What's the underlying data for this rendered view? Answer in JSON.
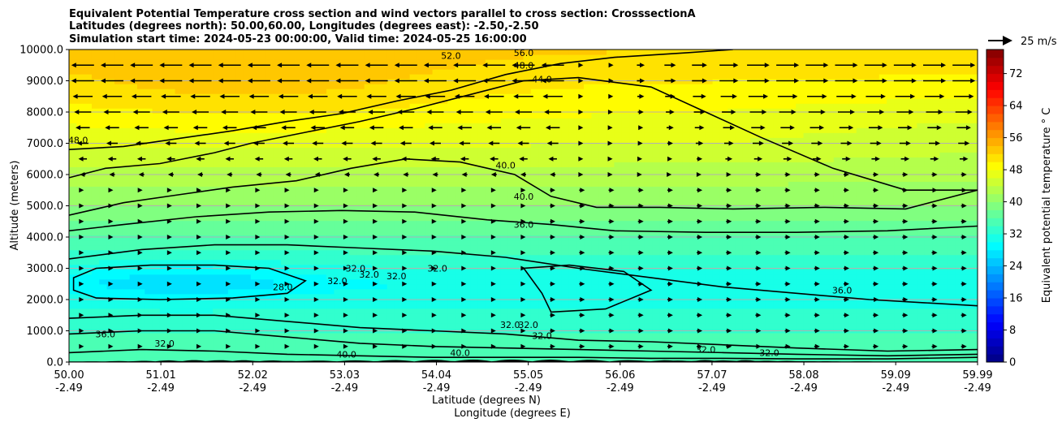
{
  "chart_data": {
    "type": "contour",
    "title_lines": [
      "Equivalent Potential Temperature cross section and wind vectors parallel to cross section: CrosssectionA",
      "Latitudes (degrees north): 50.00,60.00, Longitudes (degrees east): -2.50,-2.50",
      "Simulation start time: 2024-05-23 00:00:00, Valid time: 2024-05-25 16:00:00"
    ],
    "xlabel_lines": [
      "Latitude (degrees N)",
      "Longitude (degrees E)"
    ],
    "ylabel": "Altitude (meters)",
    "x_ticks": [
      {
        "lat": "50.00",
        "lon": "-2.49"
      },
      {
        "lat": "51.01",
        "lon": "-2.49"
      },
      {
        "lat": "52.02",
        "lon": "-2.49"
      },
      {
        "lat": "53.03",
        "lon": "-2.49"
      },
      {
        "lat": "54.04",
        "lon": "-2.49"
      },
      {
        "lat": "55.05",
        "lon": "-2.49"
      },
      {
        "lat": "56.06",
        "lon": "-2.49"
      },
      {
        "lat": "57.07",
        "lon": "-2.49"
      },
      {
        "lat": "58.08",
        "lon": "-2.49"
      },
      {
        "lat": "59.09",
        "lon": "-2.49"
      },
      {
        "lat": "59.99",
        "lon": "-2.49"
      }
    ],
    "xlim": [
      50.0,
      59.99
    ],
    "y_ticks": [
      "0.0",
      "1000.0",
      "2000.0",
      "3000.0",
      "4000.0",
      "5000.0",
      "6000.0",
      "7000.0",
      "8000.0",
      "9000.0",
      "10000.0"
    ],
    "ylim": [
      0,
      10000
    ],
    "grid": "horizontal",
    "colorbar": {
      "label": "Equivalent potential temperature ° C",
      "ticks": [
        "0",
        "8",
        "16",
        "24",
        "32",
        "40",
        "48",
        "56",
        "64",
        "72"
      ],
      "range": [
        0,
        78
      ],
      "colormap": "jet",
      "placement": "right"
    },
    "quiver_key": {
      "label": "25 m/s"
    },
    "contour_levels_labeled": [
      "28.0",
      "32.0",
      "36.0",
      "40.0",
      "44.0",
      "48.0",
      "52.0"
    ],
    "contour_labels": [
      {
        "text": "48.0",
        "lat": 50.1,
        "z": 7100
      },
      {
        "text": "48.0",
        "lat": 55.0,
        "z": 9500
      },
      {
        "text": "44.0",
        "lat": 55.2,
        "z": 9050
      },
      {
        "text": "40.0",
        "lat": 54.8,
        "z": 6300
      },
      {
        "text": "40.0",
        "lat": 55.0,
        "z": 5300
      },
      {
        "text": "36.0",
        "lat": 55.0,
        "z": 4400
      },
      {
        "text": "36.0",
        "lat": 58.5,
        "z": 2300
      },
      {
        "text": "36.0",
        "lat": 50.4,
        "z": 900
      },
      {
        "text": "32.0",
        "lat": 51.05,
        "z": 600
      },
      {
        "text": "32.0",
        "lat": 52.95,
        "z": 2600
      },
      {
        "text": "32.0",
        "lat": 53.15,
        "z": 3000
      },
      {
        "text": "32.0",
        "lat": 53.3,
        "z": 2800
      },
      {
        "text": "32.0",
        "lat": 53.6,
        "z": 2750
      },
      {
        "text": "32.0",
        "lat": 54.05,
        "z": 3000
      },
      {
        "text": "32.0",
        "lat": 54.85,
        "z": 1200
      },
      {
        "text": "32.0",
        "lat": 55.05,
        "z": 1200
      },
      {
        "text": "32.0",
        "lat": 55.2,
        "z": 850
      },
      {
        "text": "32.0",
        "lat": 57.0,
        "z": 400
      },
      {
        "text": "32.0",
        "lat": 57.7,
        "z": 300
      },
      {
        "text": "28.0",
        "lat": 52.35,
        "z": 2400
      },
      {
        "text": "40.0",
        "lat": 53.05,
        "z": 250
      },
      {
        "text": "40.0",
        "lat": 54.3,
        "z": 300
      },
      {
        "text": "52.0",
        "lat": 54.2,
        "z": 9800
      },
      {
        "text": "56.0",
        "lat": 55.0,
        "z": 9900
      }
    ],
    "theta_e_field": {
      "description_levels_c": [
        {
          "z": 0,
          "value": 36
        },
        {
          "z": 1000,
          "value": 34
        },
        {
          "z": 2500,
          "value": 30
        },
        {
          "z": 4000,
          "value": 36
        },
        {
          "z": 5000,
          "value": 40
        },
        {
          "z": 7000,
          "value": 46
        },
        {
          "z": 9000,
          "value": 50
        },
        {
          "z": 10000,
          "value": 52
        }
      ]
    },
    "wind_rows_m": [
      9500,
      9000,
      8500,
      8000,
      7500,
      7000,
      6500,
      6000,
      5500,
      5000,
      4500,
      4000,
      3500,
      3000,
      2500,
      2000,
      1500,
      1000,
      500
    ]
  }
}
